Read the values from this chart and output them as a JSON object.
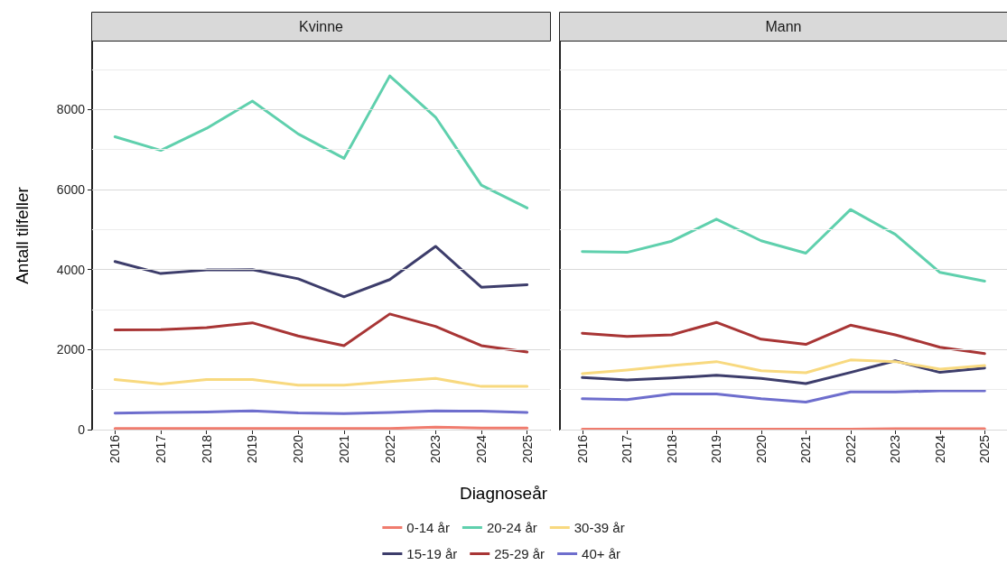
{
  "chart_data": [
    {
      "type": "line",
      "title": "Kvinne",
      "xlabel": "Diagnoseår",
      "ylabel": "Antall tilfeller",
      "categories": [
        "2016",
        "2017",
        "2018",
        "2019",
        "2020",
        "2021",
        "2022",
        "2023",
        "2024",
        "2025"
      ],
      "ylim": [
        0,
        9700
      ],
      "yticks": [
        0,
        {
          "value": 1000,
          "label": null
        },
        2000,
        {
          "value": 3000,
          "label": null
        },
        4000,
        {
          "value": 5000,
          "label": null
        },
        6000,
        {
          "value": 7000,
          "label": null
        },
        8000,
        {
          "value": 9000,
          "label": null
        }
      ],
      "grid": "y",
      "legend": "bottom",
      "marker": "none",
      "line_style": "solid",
      "series": [
        {
          "name": "0-14 år",
          "color": "#f07c6e",
          "values": [
            30,
            30,
            30,
            30,
            30,
            30,
            30,
            60,
            40,
            40
          ]
        },
        {
          "name": "15-19 år",
          "color": "#3d3d6b",
          "values": [
            4200,
            3900,
            3990,
            4000,
            3770,
            3320,
            3750,
            4580,
            3560,
            3620
          ]
        },
        {
          "name": "20-24 år",
          "color": "#5fd0ad",
          "values": [
            7320,
            6980,
            7530,
            8210,
            7390,
            6780,
            8840,
            7810,
            6110,
            5540
          ]
        },
        {
          "name": "25-29 år",
          "color": "#a83535",
          "values": [
            2490,
            2500,
            2550,
            2670,
            2340,
            2100,
            2890,
            2580,
            2100,
            1940
          ]
        },
        {
          "name": "30-39 år",
          "color": "#f8d97f",
          "values": [
            1250,
            1140,
            1250,
            1250,
            1110,
            1110,
            1200,
            1280,
            1080,
            1080
          ]
        },
        {
          "name": "40+ år",
          "color": "#6e6ecd",
          "values": [
            410,
            430,
            440,
            470,
            420,
            400,
            430,
            470,
            460,
            430
          ]
        }
      ]
    },
    {
      "type": "line",
      "title": "Mann",
      "categories": [
        "2016",
        "2017",
        "2018",
        "2019",
        "2020",
        "2021",
        "2022",
        "2023",
        "2024",
        "2025"
      ],
      "ylim": [
        0,
        9700
      ],
      "yticks": [
        0,
        {
          "value": 1000,
          "label": null
        },
        2000,
        {
          "value": 3000,
          "label": null
        },
        4000,
        {
          "value": 5000,
          "label": null
        },
        6000,
        {
          "value": 7000,
          "label": null
        },
        8000,
        {
          "value": 9000,
          "label": null
        }
      ],
      "grid": "y",
      "tick_labels": "x",
      "marker": "none",
      "line_style": "solid",
      "series": [
        {
          "color": "#f07c6e",
          "values": [
            10,
            10,
            10,
            10,
            10,
            10,
            10,
            20,
            20,
            20
          ]
        },
        {
          "color": "#3d3d6b",
          "values": [
            1300,
            1240,
            1290,
            1360,
            1280,
            1150,
            1430,
            1720,
            1430,
            1540
          ]
        },
        {
          "color": "#5fd0ad",
          "values": [
            4450,
            4430,
            4710,
            5260,
            4720,
            4410,
            5500,
            4880,
            3930,
            3710
          ]
        },
        {
          "color": "#a83535",
          "values": [
            2410,
            2330,
            2370,
            2680,
            2260,
            2130,
            2610,
            2370,
            2060,
            1900
          ]
        },
        {
          "color": "#f8d97f",
          "values": [
            1400,
            1490,
            1600,
            1700,
            1470,
            1420,
            1740,
            1700,
            1510,
            1600
          ]
        },
        {
          "color": "#6e6ecd",
          "values": [
            770,
            750,
            890,
            890,
            770,
            690,
            940,
            940,
            970,
            970
          ]
        }
      ]
    }
  ]
}
